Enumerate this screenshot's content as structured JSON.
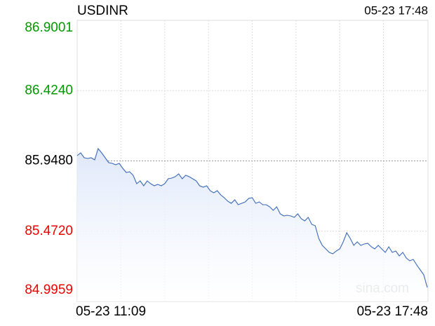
{
  "chart_data": {
    "type": "line",
    "title": "USDINR",
    "timestamp": "05-23 17:48",
    "watermark": "sina.com",
    "categories": [
      "05-23 11:09",
      null,
      null,
      null,
      null,
      null,
      null,
      null,
      null,
      null,
      null,
      null,
      null,
      null,
      null,
      null,
      null,
      null,
      null,
      null,
      null,
      null,
      null,
      null,
      null,
      null,
      null,
      null,
      null,
      null,
      null,
      null,
      null,
      null,
      null,
      null,
      null,
      null,
      null,
      null,
      null,
      null,
      null,
      null,
      null,
      null,
      null,
      null,
      null,
      null,
      null,
      null,
      null,
      null,
      null,
      null,
      null,
      null,
      null,
      null,
      null,
      null,
      null,
      null,
      null,
      null,
      null,
      null,
      null,
      null,
      null,
      null,
      null,
      null,
      null,
      null,
      null,
      null,
      null,
      null,
      null,
      null,
      null,
      null,
      null,
      null,
      null,
      null,
      null,
      null,
      null,
      null,
      null,
      null,
      null,
      null,
      null,
      null,
      null,
      null,
      "05-23 17:48"
    ],
    "values": [
      85.9835,
      86.0025,
      85.9693,
      85.9645,
      85.9693,
      85.955,
      86.031,
      86.0025,
      85.9693,
      85.9361,
      85.9313,
      85.9218,
      85.9313,
      85.8981,
      85.8696,
      85.8743,
      85.8506,
      85.7936,
      85.8126,
      85.7793,
      85.8126,
      85.7936,
      85.7793,
      85.7888,
      85.7793,
      85.7936,
      85.8268,
      85.8316,
      85.8411,
      85.8601,
      85.8268,
      85.8506,
      85.8411,
      85.8268,
      85.8126,
      85.7793,
      85.7698,
      85.7793,
      85.7461,
      85.7318,
      85.7461,
      85.7176,
      85.6986,
      85.6749,
      85.6606,
      85.6844,
      85.6511,
      85.6606,
      85.6701,
      85.6939,
      85.6986,
      85.6606,
      85.6701,
      85.6511,
      85.6511,
      85.6369,
      85.6131,
      85.6369,
      85.5894,
      85.5751,
      85.5799,
      85.5751,
      85.5656,
      85.5894,
      85.5561,
      85.5419,
      85.5656,
      85.5181,
      85.5086,
      85.4232,
      85.3757,
      85.3519,
      85.3282,
      85.3187,
      85.3377,
      85.3519,
      85.3994,
      85.4612,
      85.4232,
      85.3757,
      85.3994,
      85.3757,
      85.3852,
      85.3899,
      85.3662,
      85.3519,
      85.3757,
      85.3519,
      85.3282,
      85.3662,
      85.3282,
      85.3377,
      85.3044,
      85.3282,
      85.2902,
      85.2712,
      85.2807,
      85.2427,
      85.2095,
      85.1762,
      85.0907
    ],
    "color": "#3a68b8",
    "area": true,
    "ylim": [
      84.9959,
      86.9001
    ],
    "yticks": [
      {
        "value": 86.9001,
        "label": "86.9001"
      },
      {
        "value": 86.424,
        "label": "86.4240"
      },
      {
        "value": 85.948,
        "label": "85.9480"
      },
      {
        "value": 85.472,
        "label": "85.4720"
      },
      {
        "value": 84.9959,
        "label": "84.9959"
      }
    ],
    "ytick_colors": [
      "#009900",
      "#009900",
      "#000000",
      "#ee0000",
      "#ee0000"
    ],
    "grid": true
  }
}
